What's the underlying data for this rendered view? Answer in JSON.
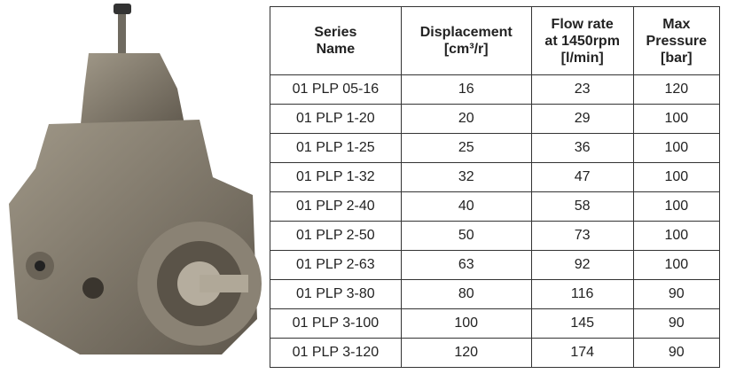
{
  "image": {
    "subject": "pump-photo"
  },
  "table": {
    "headers": [
      {
        "line1": "Series",
        "line2": "Name",
        "line3": ""
      },
      {
        "line1": "Displacement",
        "line2": "[cm³/r]",
        "line3": ""
      },
      {
        "line1": "Flow rate",
        "line2": "at 1450rpm",
        "line3": "[l/min]"
      },
      {
        "line1": "Max",
        "line2": "Pressure",
        "line3": "[bar]"
      }
    ],
    "rows": [
      [
        "01 PLP 05-16",
        "16",
        "23",
        "120"
      ],
      [
        "01 PLP 1-20",
        "20",
        "29",
        "100"
      ],
      [
        "01 PLP 1-25",
        "25",
        "36",
        "100"
      ],
      [
        "01 PLP 1-32",
        "32",
        "47",
        "100"
      ],
      [
        "01 PLP 2-40",
        "40",
        "58",
        "100"
      ],
      [
        "01 PLP 2-50",
        "50",
        "73",
        "100"
      ],
      [
        "01 PLP 2-63",
        "63",
        "92",
        "100"
      ],
      [
        "01 PLP 3-80",
        "80",
        "116",
        "90"
      ],
      [
        "01 PLP 3-100",
        "100",
        "145",
        "90"
      ],
      [
        "01 PLP 3-120",
        "120",
        "174",
        "90"
      ]
    ]
  }
}
